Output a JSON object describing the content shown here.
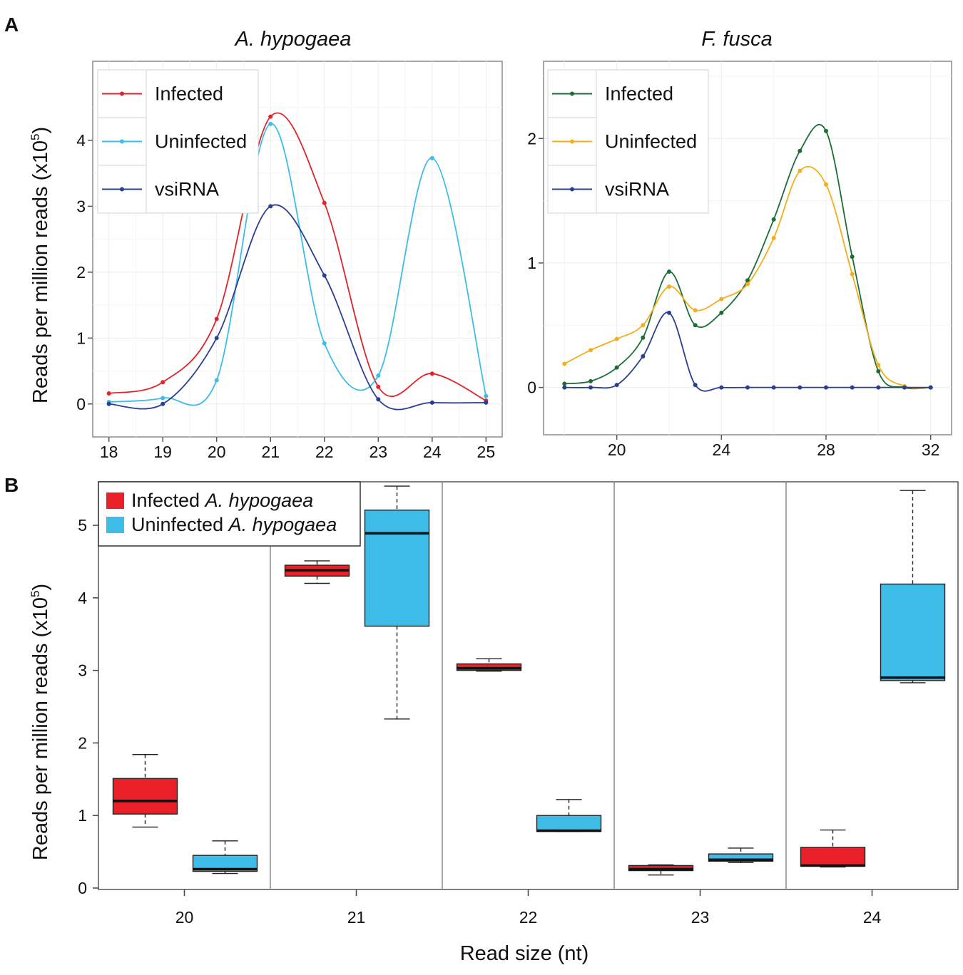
{
  "panels": {
    "a_letter": "A",
    "b_letter": "B"
  },
  "ylabel_main": "Reads per million reads (x10",
  "ylabel_sup": "5",
  "ylabel_close": ")",
  "chart_data": [
    {
      "id": "a-left",
      "type": "line",
      "title": "A. hypogaea",
      "xlabel": "",
      "ylabel": "Reads per million reads (x10^5)",
      "xlim": [
        17.7,
        25.3
      ],
      "ylim": [
        -0.5,
        5.2
      ],
      "xticks": [
        18,
        19,
        20,
        21,
        22,
        23,
        24,
        25
      ],
      "yticks": [
        0,
        1,
        2,
        3,
        4
      ],
      "legend": "top-left",
      "series": [
        {
          "name": "Infected",
          "color": "#e0242b",
          "x": [
            18,
            19,
            20,
            21,
            22,
            23,
            24,
            25
          ],
          "y": [
            0.16,
            0.33,
            1.29,
            4.36,
            3.05,
            0.26,
            0.46,
            0.05
          ]
        },
        {
          "name": "Uninfected",
          "color": "#3ebce8",
          "x": [
            18,
            19,
            20,
            21,
            22,
            23,
            24,
            25
          ],
          "y": [
            0.03,
            0.09,
            0.36,
            4.25,
            0.92,
            0.43,
            3.73,
            0.12
          ]
        },
        {
          "name": "vsiRNA",
          "color": "#2b3f92",
          "x": [
            18,
            19,
            20,
            21,
            22,
            23,
            24,
            25
          ],
          "y": [
            0.0,
            0.0,
            1.0,
            3.0,
            1.95,
            0.07,
            0.02,
            0.02
          ]
        }
      ]
    },
    {
      "id": "a-right",
      "type": "line",
      "title": "F. fusca",
      "xlabel": "",
      "ylabel": "",
      "xlim": [
        17.2,
        32.8
      ],
      "ylim": [
        -0.38,
        2.62
      ],
      "xticks": [
        20,
        24,
        28,
        32
      ],
      "yticks": [
        0,
        1,
        2
      ],
      "legend": "top-left",
      "series": [
        {
          "name": "Infected",
          "color": "#1b6e36",
          "x": [
            18,
            19,
            20,
            21,
            22,
            23,
            24,
            25,
            26,
            27,
            28,
            29,
            30,
            31,
            32
          ],
          "y": [
            0.03,
            0.05,
            0.16,
            0.4,
            0.93,
            0.5,
            0.6,
            0.86,
            1.35,
            1.9,
            2.06,
            1.05,
            0.13,
            0.0,
            0.0
          ]
        },
        {
          "name": "Uninfected",
          "color": "#f3ae1d",
          "x": [
            18,
            19,
            20,
            21,
            22,
            23,
            24,
            25,
            26,
            27,
            28,
            29,
            30,
            31,
            32
          ],
          "y": [
            0.19,
            0.3,
            0.39,
            0.5,
            0.81,
            0.62,
            0.71,
            0.83,
            1.2,
            1.74,
            1.63,
            0.91,
            0.18,
            0.01,
            0.0
          ]
        },
        {
          "name": "vsiRNA",
          "color": "#2b3f92",
          "x": [
            18,
            19,
            20,
            21,
            22,
            23,
            24,
            25,
            26,
            27,
            28,
            29,
            30,
            31,
            32
          ],
          "y": [
            0.0,
            0.0,
            0.02,
            0.25,
            0.6,
            0.02,
            0.0,
            0.0,
            0.0,
            0.0,
            0.0,
            0.0,
            0.0,
            0.0,
            0.0
          ]
        }
      ]
    },
    {
      "id": "b",
      "type": "box",
      "title": "",
      "xlabel": "Read size (nt)",
      "ylabel": "Reads per million reads (x10^5)",
      "ylim": [
        -0.02,
        5.6
      ],
      "yticks": [
        0,
        1,
        2,
        3,
        4,
        5
      ],
      "categories": [
        "20",
        "21",
        "22",
        "23",
        "24"
      ],
      "legend": "top-left",
      "series": [
        {
          "name": "Infected",
          "name_italic": "A. hypogaea",
          "color": "#ea2029",
          "boxes": [
            {
              "min": 0.84,
              "q1": 1.02,
              "median": 1.2,
              "q3": 1.51,
              "max": 1.84
            },
            {
              "min": 4.2,
              "q1": 4.3,
              "median": 4.38,
              "q3": 4.45,
              "max": 4.51
            },
            {
              "min": 2.99,
              "q1": 3.0,
              "median": 3.03,
              "q3": 3.09,
              "max": 3.16
            },
            {
              "min": 0.18,
              "q1": 0.24,
              "median": 0.26,
              "q3": 0.31,
              "max": 0.32
            },
            {
              "min": 0.29,
              "q1": 0.3,
              "median": 0.31,
              "q3": 0.56,
              "max": 0.8
            }
          ]
        },
        {
          "name": "Uninfected",
          "name_italic": "A. hypogaea",
          "color": "#3ebce8",
          "boxes": [
            {
              "min": 0.2,
              "q1": 0.23,
              "median": 0.26,
              "q3": 0.45,
              "max": 0.65
            },
            {
              "min": 2.33,
              "q1": 3.61,
              "median": 4.89,
              "q3": 5.21,
              "max": 5.54
            },
            {
              "min": 0.78,
              "q1": 0.78,
              "median": 0.79,
              "q3": 1.0,
              "max": 1.22
            },
            {
              "min": 0.35,
              "q1": 0.37,
              "median": 0.39,
              "q3": 0.47,
              "max": 0.55
            },
            {
              "min": 2.83,
              "q1": 2.86,
              "median": 2.9,
              "q3": 4.19,
              "max": 5.48
            }
          ]
        }
      ]
    }
  ]
}
